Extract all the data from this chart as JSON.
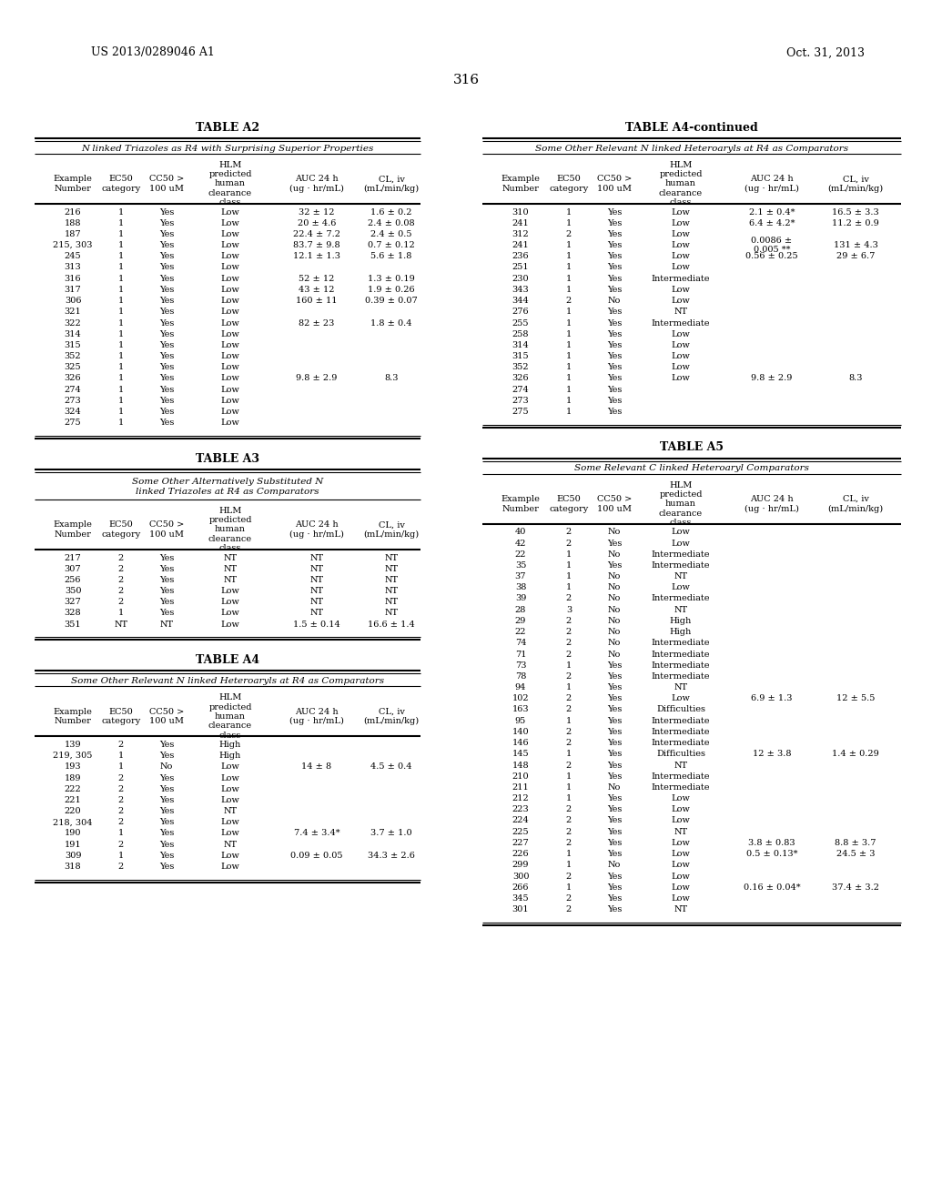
{
  "header_left": "US 2013/0289046 A1",
  "header_right": "Oct. 31, 2013",
  "page_number": "316",
  "background_color": "#ffffff",
  "tables": {
    "A2": {
      "title": "TABLE A2",
      "subtitle": "N linked Triazoles as R4 with Surprising Superior Properties",
      "rows": [
        [
          "216",
          "1",
          "Yes",
          "Low",
          "32 ± 12",
          "1.6 ± 0.2"
        ],
        [
          "188",
          "1",
          "Yes",
          "Low",
          "20 ± 4.6",
          "2.4 ± 0.08"
        ],
        [
          "187",
          "1",
          "Yes",
          "Low",
          "22.4 ± 7.2",
          "2.4 ± 0.5"
        ],
        [
          "215, 303",
          "1",
          "Yes",
          "Low",
          "83.7 ± 9.8",
          "0.7 ± 0.12"
        ],
        [
          "245",
          "1",
          "Yes",
          "Low",
          "12.1 ± 1.3",
          "5.6 ± 1.8"
        ],
        [
          "313",
          "1",
          "Yes",
          "Low",
          "",
          ""
        ],
        [
          "316",
          "1",
          "Yes",
          "Low",
          "52 ± 12",
          "1.3 ± 0.19"
        ],
        [
          "317",
          "1",
          "Yes",
          "Low",
          "43 ± 12",
          "1.9 ± 0.26"
        ],
        [
          "306",
          "1",
          "Yes",
          "Low",
          "160 ± 11",
          "0.39 ± 0.07"
        ],
        [
          "321",
          "1",
          "Yes",
          "Low",
          "",
          ""
        ],
        [
          "322",
          "1",
          "Yes",
          "Low",
          "82 ± 23",
          "1.8 ± 0.4"
        ],
        [
          "314",
          "1",
          "Yes",
          "Low",
          "",
          ""
        ],
        [
          "315",
          "1",
          "Yes",
          "Low",
          "",
          ""
        ],
        [
          "352",
          "1",
          "Yes",
          "Low",
          "",
          ""
        ],
        [
          "325",
          "1",
          "Yes",
          "Low",
          "",
          ""
        ],
        [
          "326",
          "1",
          "Yes",
          "Low",
          "9.8 ± 2.9",
          "8.3"
        ],
        [
          "274",
          "1",
          "Yes",
          "Low",
          "",
          ""
        ],
        [
          "273",
          "1",
          "Yes",
          "Low",
          "",
          ""
        ],
        [
          "324",
          "1",
          "Yes",
          "Low",
          "",
          ""
        ],
        [
          "275",
          "1",
          "Yes",
          "Low",
          "",
          ""
        ]
      ]
    },
    "A3": {
      "title": "TABLE A3",
      "subtitle": "Some Other Alternatively Substituted N\nlinked Triazoles at R4 as Comparators",
      "rows": [
        [
          "217",
          "2",
          "Yes",
          "NT",
          "NT",
          "NT"
        ],
        [
          "307",
          "2",
          "Yes",
          "NT",
          "NT",
          "NT"
        ],
        [
          "256",
          "2",
          "Yes",
          "NT",
          "NT",
          "NT"
        ],
        [
          "350",
          "2",
          "Yes",
          "Low",
          "NT",
          "NT"
        ],
        [
          "327",
          "2",
          "Yes",
          "Low",
          "NT",
          "NT"
        ],
        [
          "328",
          "1",
          "Yes",
          "Low",
          "NT",
          "NT"
        ],
        [
          "351",
          "NT",
          "NT",
          "Low",
          "1.5 ± 0.14",
          "16.6 ± 1.4"
        ]
      ]
    },
    "A4": {
      "title": "TABLE A4",
      "subtitle": "Some Other Relevant N linked Heteroaryls at R4 as Comparators",
      "rows": [
        [
          "139",
          "2",
          "Yes",
          "High",
          "",
          ""
        ],
        [
          "219, 305",
          "1",
          "Yes",
          "High",
          "",
          ""
        ],
        [
          "193",
          "1",
          "No",
          "Low",
          "14 ± 8",
          "4.5 ± 0.4"
        ],
        [
          "189",
          "2",
          "Yes",
          "Low",
          "",
          ""
        ],
        [
          "222",
          "2",
          "Yes",
          "Low",
          "",
          ""
        ],
        [
          "221",
          "2",
          "Yes",
          "Low",
          "",
          ""
        ],
        [
          "220",
          "2",
          "Yes",
          "NT",
          "",
          ""
        ],
        [
          "218, 304",
          "2",
          "Yes",
          "Low",
          "",
          ""
        ],
        [
          "190",
          "1",
          "Yes",
          "Low",
          "7.4 ± 3.4*",
          "3.7 ± 1.0"
        ],
        [
          "191",
          "2",
          "Yes",
          "NT",
          "",
          ""
        ],
        [
          "309",
          "1",
          "Yes",
          "Low",
          "0.09 ± 0.05",
          "34.3 ± 2.6"
        ],
        [
          "318",
          "2",
          "Yes",
          "Low",
          "",
          ""
        ]
      ]
    },
    "A4cont": {
      "title": "TABLE A4-continued",
      "subtitle": "Some Other Relevant N linked Heteroaryls at R4 as Comparators",
      "rows": [
        [
          "310",
          "1",
          "Yes",
          "Low",
          "2.1 ± 0.4*",
          "16.5 ± 3.3"
        ],
        [
          "241",
          "1",
          "Yes",
          "Low",
          "6.4 ± 4.2*",
          "11.2 ± 0.9"
        ],
        [
          "312",
          "2",
          "Yes",
          "Low",
          "",
          ""
        ],
        [
          "241",
          "1",
          "Yes",
          "Low",
          "0.0086 ±\n0.005 **",
          "131 ± 4.3"
        ],
        [
          "236",
          "1",
          "Yes",
          "Low",
          "0.56 ± 0.25",
          "29 ± 6.7"
        ],
        [
          "251",
          "1",
          "Yes",
          "Low",
          "",
          ""
        ],
        [
          "230",
          "1",
          "Yes",
          "Intermediate",
          "",
          ""
        ],
        [
          "343",
          "1",
          "Yes",
          "Low",
          "",
          ""
        ],
        [
          "344",
          "2",
          "No",
          "Low",
          "",
          ""
        ],
        [
          "276",
          "1",
          "Yes",
          "NT",
          "",
          ""
        ],
        [
          "255",
          "1",
          "Yes",
          "Intermediate",
          "",
          ""
        ],
        [
          "258",
          "1",
          "Yes",
          "Low",
          "",
          ""
        ],
        [
          "314",
          "1",
          "Yes",
          "Low",
          "",
          ""
        ],
        [
          "315",
          "1",
          "Yes",
          "Low",
          "",
          ""
        ],
        [
          "352",
          "1",
          "Yes",
          "Low",
          "",
          ""
        ],
        [
          "326",
          "1",
          "Yes",
          "Low",
          "9.8 ± 2.9",
          "8.3"
        ],
        [
          "274",
          "1",
          "Yes",
          "",
          "",
          ""
        ],
        [
          "273",
          "1",
          "Yes",
          "",
          "",
          ""
        ],
        [
          "275",
          "1",
          "Yes",
          "",
          "",
          ""
        ]
      ]
    },
    "A5": {
      "title": "TABLE A5",
      "subtitle": "Some Relevant C linked Heteroaryl Comparators",
      "rows": [
        [
          "40",
          "2",
          "No",
          "Low",
          "",
          ""
        ],
        [
          "42",
          "2",
          "Yes",
          "Low",
          "",
          ""
        ],
        [
          "22",
          "1",
          "No",
          "Intermediate",
          "",
          ""
        ],
        [
          "35",
          "1",
          "Yes",
          "Intermediate",
          "",
          ""
        ],
        [
          "37",
          "1",
          "No",
          "NT",
          "",
          ""
        ],
        [
          "38",
          "1",
          "No",
          "Low",
          "",
          ""
        ],
        [
          "39",
          "2",
          "No",
          "Intermediate",
          "",
          ""
        ],
        [
          "28",
          "3",
          "No",
          "NT",
          "",
          ""
        ],
        [
          "29",
          "2",
          "No",
          "High",
          "",
          ""
        ],
        [
          "22",
          "2",
          "No",
          "High",
          "",
          ""
        ],
        [
          "74",
          "2",
          "No",
          "Intermediate",
          "",
          ""
        ],
        [
          "71",
          "2",
          "No",
          "Intermediate",
          "",
          ""
        ],
        [
          "73",
          "1",
          "Yes",
          "Intermediate",
          "",
          ""
        ],
        [
          "78",
          "2",
          "Yes",
          "Intermediate",
          "",
          ""
        ],
        [
          "94",
          "1",
          "Yes",
          "NT",
          "",
          ""
        ],
        [
          "102",
          "2",
          "Yes",
          "Low",
          "6.9 ± 1.3",
          "12 ± 5.5"
        ],
        [
          "163",
          "2",
          "Yes",
          "Difficulties",
          "",
          ""
        ],
        [
          "95",
          "1",
          "Yes",
          "Intermediate",
          "",
          ""
        ],
        [
          "140",
          "2",
          "Yes",
          "Intermediate",
          "",
          ""
        ],
        [
          "146",
          "2",
          "Yes",
          "Intermediate",
          "",
          ""
        ],
        [
          "145",
          "1",
          "Yes",
          "Difficulties",
          "12 ± 3.8",
          "1.4 ± 0.29"
        ],
        [
          "148",
          "2",
          "Yes",
          "NT",
          "",
          ""
        ],
        [
          "210",
          "1",
          "Yes",
          "Intermediate",
          "",
          ""
        ],
        [
          "211",
          "1",
          "No",
          "Intermediate",
          "",
          ""
        ],
        [
          "212",
          "1",
          "Yes",
          "Low",
          "",
          ""
        ],
        [
          "223",
          "2",
          "Yes",
          "Low",
          "",
          ""
        ],
        [
          "224",
          "2",
          "Yes",
          "Low",
          "",
          ""
        ],
        [
          "225",
          "2",
          "Yes",
          "NT",
          "",
          ""
        ],
        [
          "227",
          "2",
          "Yes",
          "Low",
          "3.8 ± 0.83",
          "8.8 ± 3.7"
        ],
        [
          "226",
          "1",
          "Yes",
          "Low",
          "0.5 ± 0.13*",
          "24.5 ± 3"
        ],
        [
          "299",
          "1",
          "No",
          "Low",
          "",
          ""
        ],
        [
          "300",
          "2",
          "Yes",
          "Low",
          "",
          ""
        ],
        [
          "266",
          "1",
          "Yes",
          "Low",
          "0.16 ± 0.04*",
          "37.4 ± 3.2"
        ],
        [
          "345",
          "2",
          "Yes",
          "Low",
          "",
          ""
        ],
        [
          "301",
          "2",
          "Yes",
          "NT",
          "",
          ""
        ]
      ]
    }
  }
}
